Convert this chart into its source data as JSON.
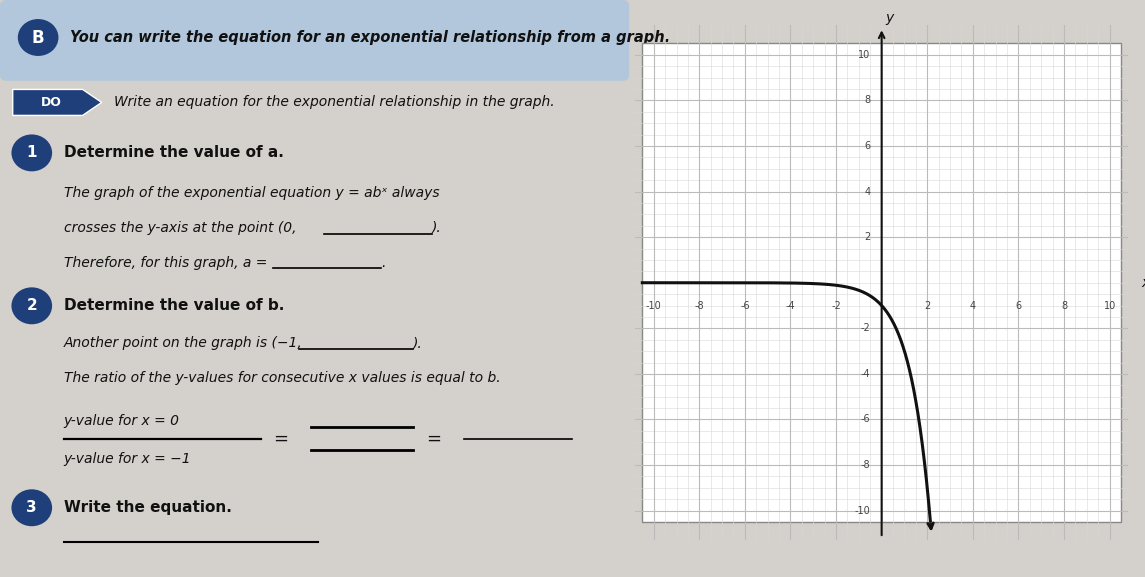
{
  "page_bg": "#d4d0cb",
  "banner_color": "#aec6e0",
  "b_color": "#1e3f7a",
  "step_color": "#1e3f7a",
  "text_color": "#111111",
  "banner_text": "You can write the equation for an exponential relationship from a graph.",
  "do_text": "DO",
  "subtitle": "Write an equation for the exponential relationship in the graph.",
  "step1_heading": "Determine the value of a.",
  "step1_l1": "The graph of the exponential equation y = abˣ always",
  "step1_l2": "crosses the y-axis at the point (0,",
  "step1_l3": "Therefore, for this graph, a =",
  "step2_heading": "Determine the value of b.",
  "step2_l1": "Another point on the graph is (−1,",
  "step2_l2": "The ratio of the y-values for consecutive x values is equal to b.",
  "ratio_top": "y-value for x = 0",
  "ratio_bot": "y-value for x = −1",
  "step3_heading": "Write the equation.",
  "graph_xlim": [
    -10.5,
    10.5
  ],
  "graph_ylim": [
    -10.5,
    10.5
  ],
  "major_ticks_x": [
    -10,
    -8,
    -6,
    -4,
    -2,
    2,
    4,
    6,
    8,
    10
  ],
  "major_ticks_y": [
    -10,
    -8,
    -6,
    -4,
    -2,
    2,
    4,
    6,
    8,
    10
  ],
  "curve_a": -1,
  "curve_b": 3,
  "curve_color": "#111111",
  "grid_fine_color": "#d8d8d8",
  "grid_major_color": "#bbbbbb",
  "axis_color": "#111111",
  "graph_bg": "#ffffff",
  "graph_border": "#888888"
}
